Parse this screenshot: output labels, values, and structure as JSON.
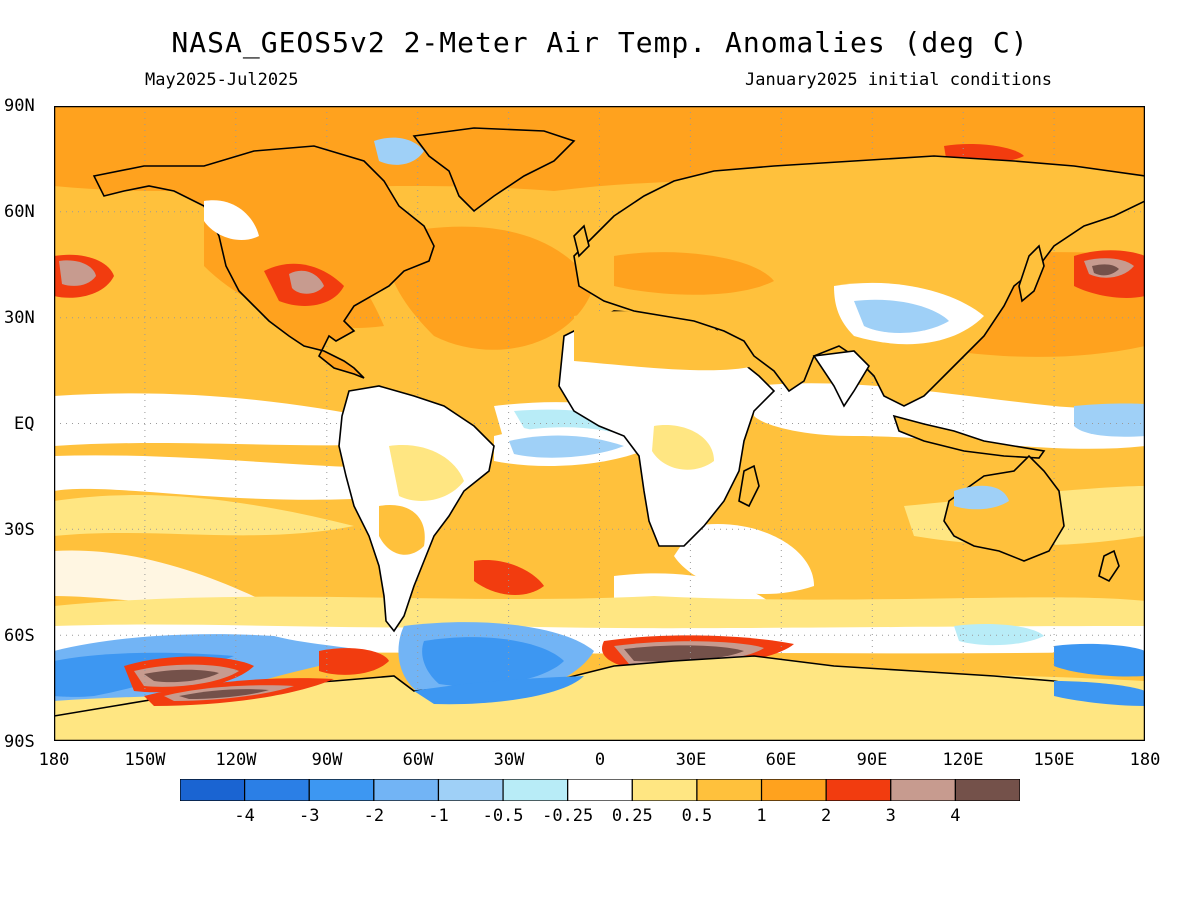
{
  "title": "NASA_GEOS5v2 2-Meter Air Temp. Anomalies (deg C)",
  "period": "May2025-Jul2025",
  "init": "January2025 initial conditions",
  "lat_labels": [
    "90N",
    "60N",
    "30N",
    "EQ",
    "30S",
    "60S",
    "90S"
  ],
  "lon_labels": [
    "180",
    "150W",
    "120W",
    "90W",
    "60W",
    "30W",
    "0",
    "30E",
    "60E",
    "90E",
    "120E",
    "150E",
    "180"
  ],
  "colorbar": {
    "colors": [
      "#1a64d2",
      "#2b7fe6",
      "#3d97f2",
      "#72b4f5",
      "#9fd0f7",
      "#b8ecf7",
      "#ffffff",
      "#ffe682",
      "#ffc13c",
      "#ffa21e",
      "#f23c0f",
      "#c79b8f",
      "#74514a"
    ],
    "labels": [
      "-4",
      "-3",
      "-2",
      "-1",
      "-0.5",
      "-0.25",
      "0.25",
      "0.5",
      "1",
      "2",
      "3",
      "4"
    ]
  },
  "palette": {
    "ocean_base": "#ffc13c",
    "land_base": "#ffa21e",
    "coast": "#000000",
    "grid": "#9a9a9a"
  }
}
